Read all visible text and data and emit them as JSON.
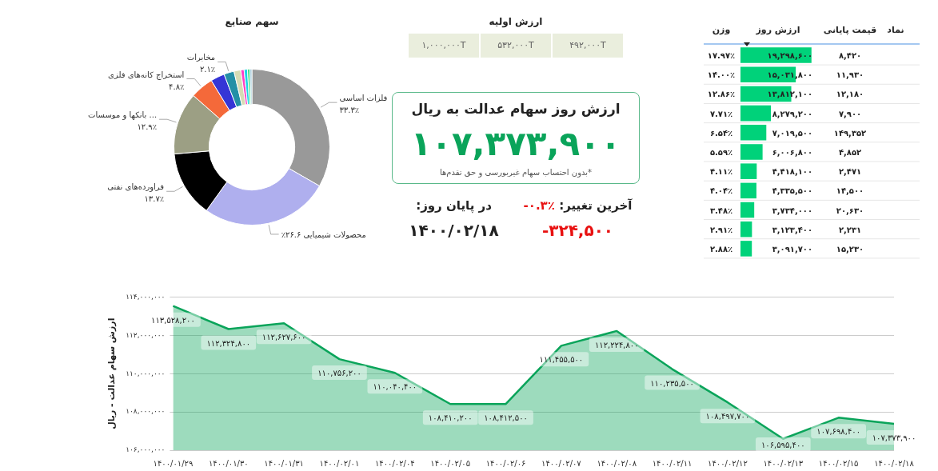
{
  "chart_data": [
    {
      "type": "donut",
      "title": "سهم صنایع",
      "categories": [
        "فلزات اساسی",
        "محصولات شیمیایی",
        "فراورده‌های نفتی",
        "... بانکها و موسسات",
        "استخراج کانه‌های فلزی",
        null,
        "مخابرات",
        null,
        null,
        null,
        null,
        null
      ],
      "values": [
        33.3,
        26.6,
        13.7,
        12.9,
        4.8,
        2.9,
        2.1,
        1.4,
        0.7,
        0.7,
        0.5,
        0.4
      ],
      "value_labels": [
        "۳۳.۳٪",
        "۲۶.۶٪",
        "۱۳.۷٪",
        "۱۲.۹٪",
        "۴.۸٪",
        null,
        "۲.۱٪",
        null,
        null,
        null,
        null,
        null
      ],
      "colors": [
        "#999999",
        "#afafee",
        "#000000",
        "#9c9f84",
        "#f4693a",
        "#3535d6",
        "#2490a6",
        "#d6dcb4",
        "#ff3fc6",
        "#18d6e6",
        "#37e07a",
        "#9ec8d8"
      ]
    },
    {
      "type": "other",
      "title": "ارزش اولیه",
      "annotations": [
        "۱,۰۰۰,۰۰۰T",
        "۵۳۲,۰۰۰T",
        "۴۹۲,۰۰۰T"
      ]
    },
    {
      "type": "other",
      "title": "ارزش روز سهام عدالت به ریال",
      "subtitle": "*بدون احتساب سهام غیربورسی و حق تقدم‌ها",
      "annotations": [
        "۱۰۷,۳۷۳,۹۰۰",
        "آخرین تغییر:",
        "-۰.۳٪",
        "در پایان روز:",
        "۱۴۰۰/۰۲/۱۸",
        "-۳۲۴,۵۰۰"
      ]
    },
    {
      "type": "bar",
      "orientation": "horizontal",
      "categories": [
        null,
        null,
        null,
        null,
        null,
        null,
        null,
        null,
        null,
        null,
        null
      ],
      "series": [
        {
          "name": "ارزش روز",
          "color": "#00d27a",
          "values": [
            19298600,
            15031800,
            13812100,
            8279200,
            7019500,
            6006800,
            4418100,
            4335500,
            3734000,
            3123400,
            3091700
          ],
          "value_labels": [
            "۱۹,۲۹۸,۶۰۰",
            "۱۵,۰۳۱,۸۰۰",
            "۱۳,۸۱۲,۱۰۰",
            "۸,۲۷۹,۲۰۰",
            "۷,۰۱۹,۵۰۰",
            "۶,۰۰۶,۸۰۰",
            "۴,۴۱۸,۱۰۰",
            "۴,۳۳۵,۵۰۰",
            "۳,۷۳۴,۰۰۰",
            "۳,۱۲۳,۴۰۰",
            "۳,۰۹۱,۷۰۰"
          ]
        }
      ],
      "annotations": [
        "نماد",
        "قیمت پایانی",
        "وزن",
        "۸,۴۲۰",
        "۱۱,۹۳۰",
        "۱۲,۱۸۰",
        "۷,۹۰۰",
        "۱۴۹,۳۵۲",
        "۴,۸۵۲",
        "۲,۴۷۱",
        "۱۴,۵۰۰",
        "۲۰,۶۳۰",
        "۲,۲۳۱",
        "۱۵,۲۳۰",
        "۱۷.۹۷٪",
        "۱۴.۰۰٪",
        "۱۲.۸۶٪",
        "۷.۷۱٪",
        "۶.۵۴٪",
        "۵.۵۹٪",
        "۴.۱۱٪",
        "۴.۰۴٪",
        "۳.۴۸٪",
        "۲.۹۱٪",
        "۲.۸۸٪"
      ]
    },
    {
      "type": "area",
      "ylabel": "ارزش سهام عدالت - ریال",
      "grid": "y",
      "categories": [
        "۱۴۰۰/۰۱/۲۹",
        "۱۴۰۰/۰۱/۳۰",
        "۱۴۰۰/۰۱/۳۱",
        "۱۴۰۰/۰۲/۰۱",
        "۱۴۰۰/۰۲/۰۴",
        "۱۴۰۰/۰۲/۰۵",
        "۱۴۰۰/۰۲/۰۶",
        "۱۴۰۰/۰۲/۰۷",
        "۱۴۰۰/۰۲/۰۸",
        "۱۴۰۰/۰۲/۱۱",
        "۱۴۰۰/۰۲/۱۲",
        "۱۴۰۰/۰۲/۱۳",
        "۱۴۰۰/۰۲/۱۵",
        "۱۴۰۰/۰۲/۱۸"
      ],
      "series": [
        {
          "color": "#0aa45a",
          "values": [
            113528200,
            112324800,
            112627600,
            110756200,
            110040400,
            108410200,
            108412500,
            111455500,
            112224800,
            110235500,
            108497700,
            106595400,
            107698400,
            107373900
          ],
          "value_labels": [
            "۱۱۳,۵۲۸,۲۰۰",
            "۱۱۲,۳۲۴,۸۰۰",
            "۱۱۲,۶۲۷,۶۰۰",
            "۱۱۰,۷۵۶,۲۰۰",
            "۱۱۰,۰۴۰,۴۰۰",
            "۱۰۸,۴۱۰,۲۰۰",
            "۱۰۸,۴۱۲,۵۰۰",
            "۱۱۱,۴۵۵,۵۰۰",
            "۱۱۲,۲۲۴,۸۰۰",
            "۱۱۰,۲۳۵,۵۰۰",
            "۱۰۸,۴۹۷,۷۰۰",
            "۱۰۶,۵۹۵,۴۰۰",
            "۱۰۷,۶۹۸,۴۰۰",
            "۱۰۷,۳۷۳,۹۰۰"
          ]
        }
      ],
      "ylim": [
        106000000,
        114000000
      ],
      "yticks": [
        {
          "value": 106000000,
          "label": "۱۰۶,۰۰۰,۰۰۰"
        },
        {
          "value": 108000000,
          "label": "۱۰۸,۰۰۰,۰۰۰"
        },
        {
          "value": 110000000,
          "label": "۱۱۰,۰۰۰,۰۰۰"
        },
        {
          "value": 112000000,
          "label": "۱۱۲,۰۰۰,۰۰۰"
        },
        {
          "value": 114000000,
          "label": "۱۱۴,۰۰۰,۰۰۰"
        }
      ]
    }
  ]
}
